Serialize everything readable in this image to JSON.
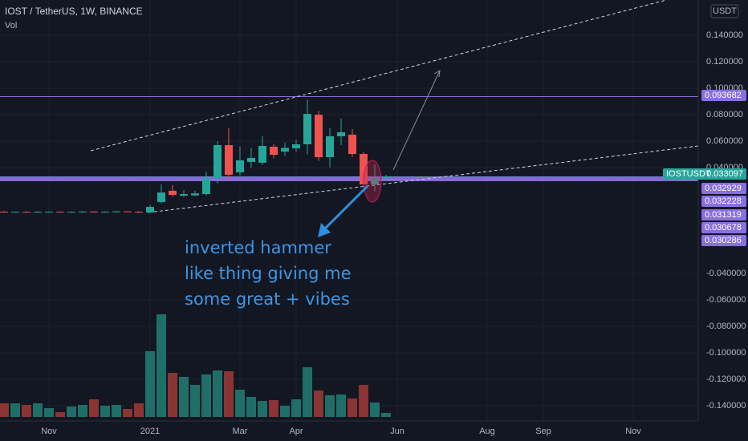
{
  "chart_data": {
    "type": "candlestick",
    "title": "IOST / TetherUS, 1W, BINANCE",
    "volume_label": "Vol",
    "currency": "USDT",
    "symbol": "IOSTUSDT",
    "last_price": 0.033097,
    "up_color": "#26a69a",
    "down_color": "#ef5350",
    "volume_up_color": "#1f6f68",
    "volume_down_color": "#8a3434",
    "level_color": "#8a6fe0",
    "grid": true,
    "categories": [
      null,
      null,
      null,
      null,
      "Nov",
      null,
      null,
      null,
      null,
      null,
      null,
      null,
      null,
      "2021",
      null,
      null,
      null,
      null,
      null,
      null,
      null,
      "Mar",
      null,
      null,
      null,
      null,
      "Apr",
      null,
      null,
      null,
      null,
      null,
      null,
      null,
      null,
      "Jun",
      null,
      null,
      null,
      null,
      null,
      null,
      null,
      "Aug",
      null,
      null,
      null,
      null,
      "Sep",
      null,
      null,
      null,
      null,
      null,
      null,
      null,
      "Nov",
      null,
      null,
      null,
      null,
      null
    ],
    "open": [
      0.0067,
      0.0065,
      0.0066,
      0.0064,
      0.0066,
      0.0067,
      0.0065,
      0.0066,
      0.0068,
      0.0066,
      0.0067,
      0.0069,
      0.0067,
      0.0061,
      0.014,
      0.0225,
      0.0188,
      0.019,
      0.02,
      0.0322,
      0.057,
      0.0364,
      0.0443,
      0.0437,
      0.0558,
      0.0521,
      0.0546,
      0.0576,
      0.08,
      0.0479,
      0.0637,
      0.0649,
      0.0503,
      0.0273,
      0.0322,
      null,
      null,
      null,
      null,
      null,
      null,
      null,
      null,
      null,
      null,
      null,
      null,
      null,
      null,
      null,
      null,
      null,
      null,
      null,
      null,
      null,
      null,
      null,
      null,
      null,
      null,
      null
    ],
    "high": [
      0.0072,
      0.007,
      0.007,
      0.007,
      0.0071,
      0.007,
      0.007,
      0.0072,
      0.0071,
      0.0071,
      0.0073,
      0.0071,
      0.007,
      0.012,
      0.0273,
      0.0267,
      0.023,
      0.0225,
      0.037,
      0.06,
      0.07,
      0.056,
      0.055,
      0.064,
      0.058,
      0.059,
      0.061,
      0.0915,
      0.083,
      0.07,
      0.077,
      0.069,
      0.052,
      0.0425,
      0.0345,
      null,
      null,
      null,
      null,
      null,
      null,
      null,
      null,
      null,
      null,
      null,
      null,
      null,
      null,
      null,
      null,
      null,
      null,
      null,
      null,
      null,
      null,
      null,
      null,
      null,
      null,
      null
    ],
    "low": [
      0.0062,
      0.0062,
      0.0061,
      0.0062,
      0.0063,
      0.0062,
      0.0062,
      0.0064,
      0.0063,
      0.0064,
      0.0065,
      0.0064,
      0.0058,
      0.0058,
      0.013,
      0.018,
      0.018,
      0.0185,
      0.019,
      0.028,
      0.03,
      0.034,
      0.04,
      0.042,
      0.047,
      0.049,
      0.052,
      0.05,
      0.045,
      0.04,
      0.057,
      0.048,
      0.026,
      0.022,
      0.031,
      null,
      null,
      null,
      null,
      null,
      null,
      null,
      null,
      null,
      null,
      null,
      null,
      null,
      null,
      null,
      null,
      null,
      null,
      null,
      null,
      null,
      null,
      null,
      null,
      null,
      null,
      null
    ],
    "close": [
      0.0065,
      0.0066,
      0.0064,
      0.0066,
      0.0067,
      0.0065,
      0.0066,
      0.0068,
      0.0066,
      0.0067,
      0.0069,
      0.0067,
      0.0061,
      0.0103,
      0.0212,
      0.0194,
      0.02,
      0.0205,
      0.0322,
      0.057,
      0.0346,
      0.0455,
      0.0473,
      0.0564,
      0.0497,
      0.0549,
      0.0576,
      0.0806,
      0.0479,
      0.0637,
      0.0667,
      0.0503,
      0.0273,
      0.032,
      0.0331,
      null,
      null,
      null,
      null,
      null,
      null,
      null,
      null,
      null,
      null,
      null,
      null,
      null,
      null,
      null,
      null,
      null,
      null,
      null,
      null,
      null,
      null,
      null,
      null,
      null,
      null,
      null
    ],
    "volume": [
      17,
      17,
      15,
      17,
      11,
      6,
      13,
      15,
      22,
      14,
      15,
      10,
      17,
      82,
      128,
      55,
      50,
      40,
      53,
      58,
      57,
      34,
      25,
      20,
      21,
      14,
      22,
      62,
      33,
      27,
      28,
      23,
      40,
      18,
      5,
      null,
      null,
      null,
      null,
      null,
      null,
      null,
      null,
      null,
      null,
      null,
      null,
      null,
      null,
      null,
      null,
      null,
      null,
      null,
      null,
      null,
      null,
      null,
      null,
      null,
      null,
      null
    ],
    "vlim": [
      0,
      140
    ],
    "ylim": [
      -0.1515,
      0.1667
    ],
    "yticks": [
      {
        "value": 0.14,
        "label": "0.140000"
      },
      {
        "value": 0.12,
        "label": "0.120000"
      },
      {
        "value": 0.1,
        "label": "0.100000"
      },
      {
        "value": 0.08,
        "label": "0.080000"
      },
      {
        "value": 0.06,
        "label": "0.060000"
      },
      {
        "value": 0.04,
        "label": "0.040000"
      },
      {
        "value": -0.04,
        "label": "-0.040000"
      },
      {
        "value": -0.06,
        "label": "-0.060000"
      },
      {
        "value": -0.08,
        "label": "-0.080000"
      },
      {
        "value": -0.1,
        "label": "-0.100000"
      },
      {
        "value": -0.12,
        "label": "-0.120000"
      },
      {
        "value": -0.14,
        "label": "-0.140000"
      }
    ],
    "price_levels": [
      0.093682,
      0.032929,
      0.032228,
      0.031319,
      0.030678,
      0.030286
    ],
    "annotation": [
      "inverted hammer",
      "like thing giving me",
      "some great + vibes"
    ]
  }
}
